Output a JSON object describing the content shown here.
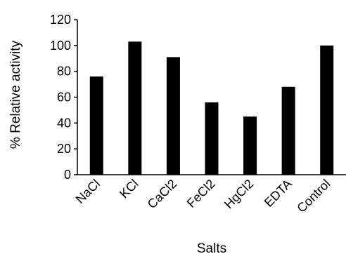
{
  "chart_data": {
    "type": "bar",
    "title": "",
    "xlabel": "Salts",
    "ylabel": "% Relative activity",
    "categories": [
      "NaCl",
      "KCl",
      "CaCl2",
      "FeCl2",
      "HgCl2",
      "EDTA",
      "Control"
    ],
    "values": [
      76,
      103,
      91,
      56,
      45,
      68,
      100
    ],
    "ylim": [
      0,
      120
    ],
    "yticks": [
      0,
      20,
      40,
      60,
      80,
      100,
      120
    ],
    "grid": false,
    "legend": "none",
    "bar_color": "#000000",
    "axis_color": "#000000"
  }
}
